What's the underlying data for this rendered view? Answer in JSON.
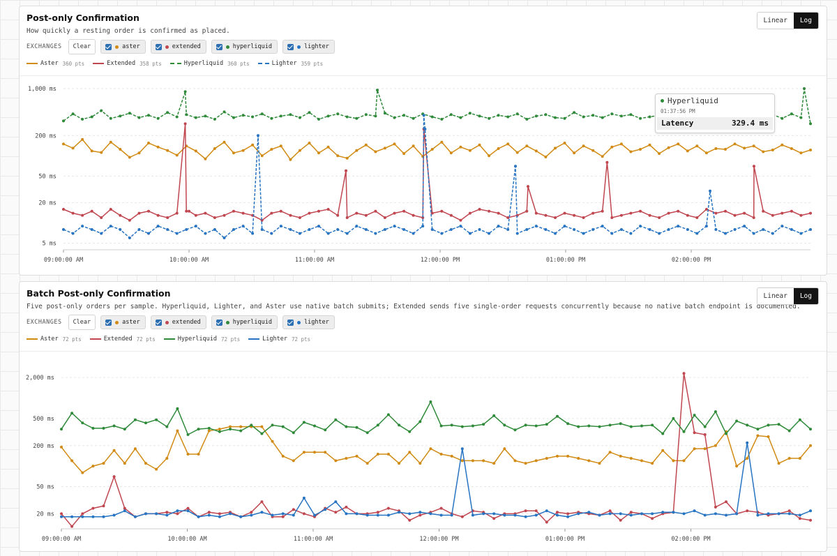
{
  "colors": {
    "aster": "#d18b14",
    "extended": "#c0464f",
    "hyperliquid": "#2f8a3a",
    "lighter": "#2774c2"
  },
  "panels": [
    {
      "title": "Post-only Confirmation",
      "subtitle": "How quickly a resting order is confirmed as placed.",
      "scale_buttons": [
        "Linear",
        "Log"
      ],
      "scale_active": "Log",
      "exchanges_label": "EXCHANGES",
      "clear_label": "Clear",
      "exchanges": [
        "aster",
        "extended",
        "hyperliquid",
        "lighter"
      ],
      "legend": [
        {
          "name": "Aster",
          "pts": "360 pts"
        },
        {
          "name": "Extended",
          "pts": "358 pts"
        },
        {
          "name": "Hyperliquid",
          "pts": "360 pts"
        },
        {
          "name": "Lighter",
          "pts": "359 pts"
        }
      ],
      "tooltip": {
        "series": "Hyperliquid",
        "time": "01:37:56 PM",
        "label": "Latency",
        "value": "329.4 ms"
      }
    },
    {
      "title": "Batch Post-only Confirmation",
      "subtitle": "Five post-only orders per sample. Hyperliquid, Lighter, and Aster use native batch submits; Extended sends five single-order requests concurrently because no native batch endpoint is documented.",
      "scale_buttons": [
        "Linear",
        "Log"
      ],
      "scale_active": "Log",
      "exchanges_label": "EXCHANGES",
      "clear_label": "Clear",
      "exchanges": [
        "aster",
        "extended",
        "hyperliquid",
        "lighter"
      ],
      "legend": [
        {
          "name": "Aster",
          "pts": "72 pts"
        },
        {
          "name": "Extended",
          "pts": "72 pts"
        },
        {
          "name": "Hyperliquid",
          "pts": "72 pts"
        },
        {
          "name": "Lighter",
          "pts": "72 pts"
        }
      ]
    }
  ],
  "chart_data": [
    {
      "type": "line",
      "title": "Post-only Confirmation",
      "yscale": "log",
      "ylim": [
        4,
        1000
      ],
      "yticks": [
        {
          "v": 1000,
          "label": "1,000 ms"
        },
        {
          "v": 200,
          "label": "200 ms"
        },
        {
          "v": 50,
          "label": "50 ms"
        },
        {
          "v": 20,
          "label": "20 ms"
        },
        {
          "v": 5,
          "label": "5 ms"
        }
      ],
      "xlim": [
        9.0,
        14.95
      ],
      "xticks": [
        {
          "v": 9,
          "label": "09:00:00 AM"
        },
        {
          "v": 10,
          "label": "10:00:00 AM"
        },
        {
          "v": 11,
          "label": "11:00:00 AM"
        },
        {
          "v": 12,
          "label": "12:00:00 PM"
        },
        {
          "v": 13,
          "label": "01:00:00 PM"
        },
        {
          "v": 14,
          "label": "02:00:00 PM"
        }
      ],
      "series": [
        {
          "name": "Aster",
          "key": "aster",
          "dashed": false,
          "dots": true,
          "values": [
            150,
            130,
            175,
            118,
            112,
            160,
            125,
            95,
            110,
            155,
            135,
            120,
            102,
            140,
            118,
            90,
            128,
            160,
            110,
            120,
            145,
            100,
            125,
            140,
            88,
            120,
            155,
            110,
            135,
            100,
            92,
            120,
            145,
            115,
            130,
            150,
            108,
            140,
            98,
            125,
            160,
            110,
            135,
            120,
            145,
            100,
            128,
            150,
            112,
            140,
            118,
            96,
            130,
            155,
            110,
            140,
            120,
            98,
            135,
            150,
            115,
            125,
            145,
            108,
            132,
            150,
            118,
            140,
            110,
            128,
            125,
            150,
            130,
            140,
            115,
            122,
            145,
            128,
            110,
            122
          ]
        },
        {
          "name": "Extended",
          "key": "extended",
          "dashed": false,
          "dots": true,
          "values": [
            16,
            14,
            13,
            15,
            12,
            16,
            13,
            11,
            14,
            15,
            13,
            12,
            14,
            15,
            13,
            14,
            12,
            13,
            15,
            14,
            13,
            11,
            14,
            15,
            13,
            12,
            14,
            15,
            16,
            13,
            12,
            14,
            13,
            15,
            12,
            14,
            15,
            13,
            12,
            14,
            15,
            13,
            11,
            14,
            16,
            15,
            14,
            12,
            13,
            15,
            14,
            13,
            12,
            14,
            13,
            12,
            14,
            15,
            12,
            13,
            14,
            15,
            13,
            12,
            14,
            15,
            13,
            12,
            16,
            14,
            15,
            13,
            14,
            12,
            15,
            13,
            14,
            15,
            13,
            14
          ]
        },
        {
          "name": "Hyperliquid",
          "key": "hyperliquid",
          "dashed": true,
          "dots": true,
          "values": [
            330,
            420,
            350,
            380,
            470,
            360,
            390,
            430,
            370,
            400,
            360,
            440,
            380,
            410,
            370,
            390,
            350,
            450,
            370,
            400,
            380,
            420,
            360,
            390,
            410,
            370,
            440,
            350,
            390,
            420,
            380,
            360,
            410,
            390,
            430,
            370,
            400,
            360,
            420,
            380,
            350,
            410,
            370,
            430,
            390,
            360,
            400,
            380,
            420,
            350,
            390,
            410,
            370,
            360,
            440,
            380,
            400,
            370,
            420,
            390,
            410,
            360,
            380,
            400,
            370,
            430,
            390,
            360,
            410,
            380,
            420,
            370,
            390,
            400,
            380,
            410,
            360,
            420,
            370,
            300
          ]
        },
        {
          "name": "Lighter",
          "key": "lighter",
          "dashed": true,
          "dots": true,
          "values": [
            8,
            7,
            9,
            8,
            7,
            9,
            8,
            6,
            8,
            7,
            9,
            8,
            7,
            8,
            9,
            7,
            8,
            6,
            8,
            9,
            7,
            8,
            7,
            9,
            8,
            7,
            8,
            9,
            7,
            8,
            7,
            9,
            8,
            7,
            8,
            9,
            8,
            7,
            9,
            8,
            7,
            8,
            9,
            7,
            8,
            7,
            9,
            8,
            7,
            8,
            9,
            8,
            7,
            9,
            8,
            7,
            8,
            9,
            7,
            8,
            7,
            9,
            8,
            7,
            8,
            9,
            8,
            7,
            9,
            8,
            7,
            8,
            9,
            7,
            8,
            7,
            9,
            8,
            7,
            8
          ]
        }
      ],
      "spikes": [
        {
          "key": "extended",
          "points": [
            [
              9.97,
              300
            ],
            [
              10.0,
              15
            ],
            [
              11.25,
              60
            ],
            [
              11.87,
              250
            ],
            [
              12.7,
              35
            ],
            [
              13.33,
              80
            ],
            [
              14.5,
              70
            ]
          ]
        },
        {
          "key": "lighter",
          "points": [
            [
              10.55,
              200
            ],
            [
              11.87,
              400
            ],
            [
              11.88,
              250
            ],
            [
              12.6,
              70
            ],
            [
              14.15,
              30
            ]
          ]
        },
        {
          "key": "hyperliquid",
          "points": [
            [
              9.97,
              900
            ],
            [
              11.5,
              950
            ],
            [
              14.9,
              1000
            ]
          ]
        }
      ]
    },
    {
      "type": "line",
      "title": "Batch Post-only Confirmation",
      "yscale": "log",
      "ylim": [
        12,
        3000
      ],
      "yticks": [
        {
          "v": 2000,
          "label": "2,000 ms"
        },
        {
          "v": 500,
          "label": "500 ms"
        },
        {
          "v": 200,
          "label": "200 ms"
        },
        {
          "v": 50,
          "label": "50 ms"
        },
        {
          "v": 20,
          "label": "20 ms"
        }
      ],
      "xlim": [
        9.0,
        14.95
      ],
      "xticks": [
        {
          "v": 9,
          "label": "09:00:00 AM"
        },
        {
          "v": 10,
          "label": "10:00:00 AM"
        },
        {
          "v": 11,
          "label": "11:00:00 AM"
        },
        {
          "v": 12,
          "label": "12:00:00 PM"
        },
        {
          "v": 13,
          "label": "01:00:00 PM"
        },
        {
          "v": 14,
          "label": "02:00:00 PM"
        }
      ],
      "series": [
        {
          "name": "Aster",
          "key": "aster",
          "dashed": false,
          "dots": true,
          "values": [
            190,
            120,
            80,
            100,
            110,
            170,
            110,
            180,
            110,
            90,
            130,
            330,
            150,
            150,
            330,
            350,
            380,
            380,
            380,
            380,
            230,
            140,
            120,
            160,
            160,
            160,
            120,
            130,
            140,
            110,
            150,
            150,
            110,
            160,
            110,
            180,
            150,
            140,
            120,
            120,
            120,
            110,
            180,
            120,
            110,
            120,
            130,
            140,
            140,
            130,
            120,
            110,
            160,
            140,
            130,
            120,
            110,
            170,
            120,
            120,
            180,
            180,
            200,
            320,
            100,
            130,
            280,
            270,
            110,
            130,
            130,
            200
          ]
        },
        {
          "name": "Extended",
          "key": "extended",
          "dashed": false,
          "dots": true,
          "values": [
            20,
            13,
            20,
            24,
            26,
            70,
            24,
            18,
            20,
            20,
            21,
            20,
            24,
            18,
            21,
            20,
            21,
            18,
            21,
            30,
            18,
            18,
            23,
            20,
            18,
            24,
            21,
            25,
            20,
            20,
            21,
            24,
            22,
            16,
            19,
            21,
            24,
            20,
            18,
            22,
            21,
            17,
            20,
            20,
            22,
            22,
            15,
            21,
            20,
            21,
            20,
            19,
            22,
            16,
            21,
            20,
            17,
            20,
            21,
            2300,
            310,
            290,
            25,
            30,
            20,
            22,
            21,
            19,
            20,
            22,
            17,
            16
          ]
        },
        {
          "name": "Hyperliquid",
          "key": "hyperliquid",
          "dashed": false,
          "dots": true,
          "values": [
            350,
            600,
            430,
            360,
            360,
            390,
            350,
            480,
            430,
            480,
            380,
            700,
            290,
            350,
            360,
            320,
            350,
            330,
            400,
            300,
            400,
            380,
            310,
            440,
            390,
            340,
            480,
            380,
            370,
            310,
            400,
            570,
            400,
            320,
            450,
            880,
            390,
            400,
            380,
            390,
            410,
            550,
            400,
            340,
            400,
            390,
            410,
            540,
            420,
            380,
            390,
            380,
            400,
            420,
            380,
            390,
            400,
            300,
            500,
            320,
            560,
            380,
            630,
            300,
            460,
            400,
            350,
            400,
            410,
            330,
            480,
            350
          ]
        },
        {
          "name": "Lighter",
          "key": "lighter",
          "dashed": false,
          "dots": true,
          "values": [
            18,
            18,
            18,
            18,
            18,
            19,
            22,
            18,
            20,
            20,
            19,
            22,
            22,
            18,
            19,
            18,
            20,
            18,
            19,
            21,
            19,
            20,
            19,
            34,
            19,
            23,
            30,
            20,
            20,
            19,
            19,
            19,
            21,
            20,
            21,
            20,
            19,
            19,
            180,
            19,
            20,
            20,
            19,
            19,
            18,
            19,
            22,
            19,
            18,
            20,
            21,
            19,
            20,
            20,
            19,
            20,
            20,
            21,
            21,
            20,
            22,
            19,
            20,
            19,
            20,
            220,
            19,
            20,
            20,
            20,
            19,
            22
          ]
        }
      ]
    }
  ]
}
